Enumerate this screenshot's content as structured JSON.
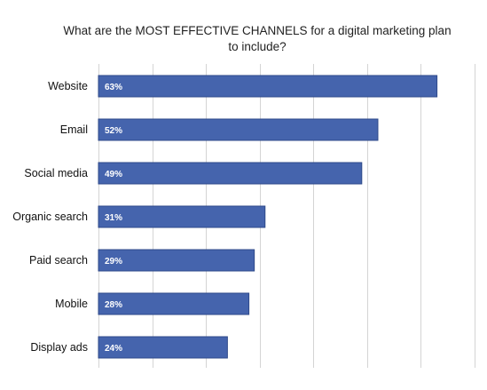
{
  "chart_data": {
    "type": "bar",
    "orientation": "horizontal",
    "title_lines": [
      "What are the MOST EFFECTIVE CHANNELS for a digital marketing plan",
      "to include?"
    ],
    "categories": [
      "Website",
      "Email",
      "Social media",
      "Organic search",
      "Paid search",
      "Mobile",
      "Display ads"
    ],
    "values": [
      63,
      52,
      49,
      31,
      29,
      28,
      24
    ],
    "value_labels": [
      "63%",
      "52%",
      "49%",
      "31%",
      "29%",
      "28%",
      "24%"
    ],
    "xlim": [
      0,
      70
    ],
    "x_grid_step": 10,
    "grid": true,
    "legend": "none",
    "bar_color": "#4564ad",
    "bar_edge_color": "#2f4a8a",
    "grid_color": "#d4d4d4"
  }
}
